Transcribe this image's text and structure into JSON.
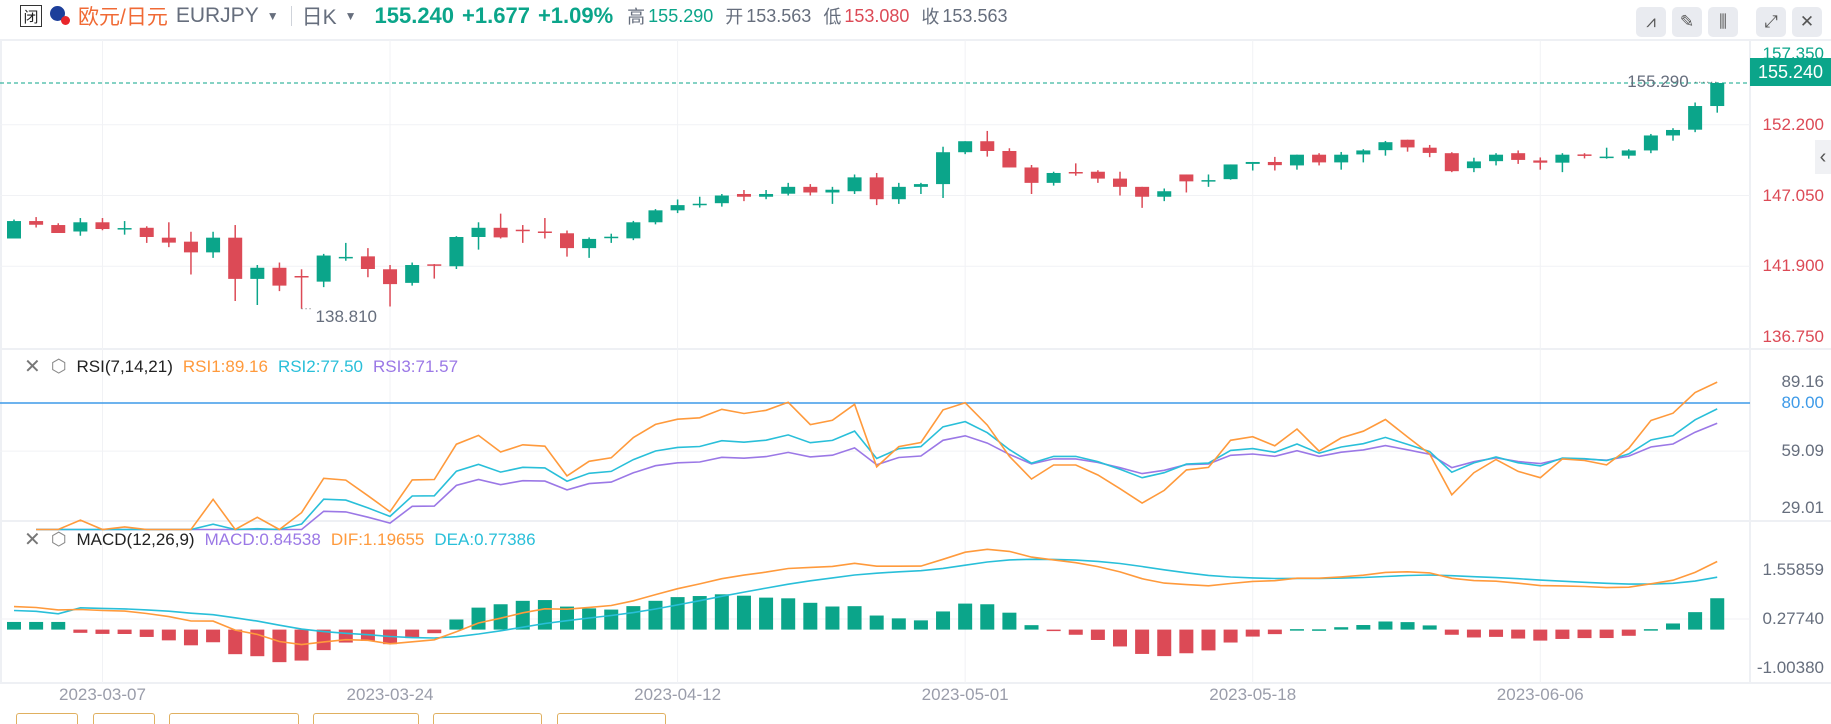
{
  "header": {
    "closed_badge": "闭",
    "name": "欧元/日元",
    "symbol": "EURJPY",
    "period": "日K",
    "price": "155.240",
    "change": "+1.677",
    "change_pct": "+1.09%",
    "high_label": "高",
    "high": "155.290",
    "open_label": "开",
    "open": "153.563",
    "low_label": "低",
    "low": "153.080",
    "close_label": "收",
    "close": "153.563"
  },
  "toolbar": [
    {
      "name": "indicator-line-icon",
      "glyph": "⩘"
    },
    {
      "name": "pencil-icon",
      "glyph": "✎"
    },
    {
      "name": "candlestick-icon",
      "glyph": "⫼"
    },
    {
      "name": "expand-icon",
      "glyph": "⤢"
    },
    {
      "name": "close-icon",
      "glyph": "✕"
    }
  ],
  "rsi_legend": {
    "title": "RSI(7,14,21)",
    "rsi1": "RSI1:89.16",
    "rsi2": "RSI2:77.50",
    "rsi3": "RSI3:71.57"
  },
  "macd_legend": {
    "title": "MACD(12,26,9)",
    "macd": "MACD:0.84538",
    "dif": "DIF:1.19655",
    "dea": "DEA:0.77386"
  },
  "colors": {
    "up": "#0ba58a",
    "down": "#dc4a56",
    "rsi1": "#ff9a3c",
    "rsi2": "#29bfd9",
    "rsi3": "#9b78e6",
    "dif": "#ff9a3c",
    "dea": "#29bfd9",
    "rsi_level": "#3d9ae8"
  },
  "chart_data": {
    "type": "candlestick",
    "title": "欧元/日元 EURJPY 日K",
    "current_price": 155.24,
    "current_price_label": "155.240",
    "high_marker": {
      "index": 77,
      "value": 155.29,
      "label": "155.290"
    },
    "low_marker": {
      "index": 13,
      "value": 138.81,
      "label": "138.810"
    },
    "price_axis": {
      "ylim": [
        136.75,
        157.35
      ],
      "ticks": [
        "157.350",
        "152.200",
        "147.050",
        "141.900",
        "136.750"
      ],
      "tick_values": [
        157.35,
        152.2,
        147.05,
        141.9,
        136.75
      ]
    },
    "x_ticks": [
      {
        "index": 4,
        "label": "2023-03-07"
      },
      {
        "index": 17,
        "label": "2023-03-24"
      },
      {
        "index": 30,
        "label": "2023-04-12"
      },
      {
        "index": 43,
        "label": "2023-05-01"
      },
      {
        "index": 56,
        "label": "2023-05-18"
      },
      {
        "index": 69,
        "label": "2023-06-06"
      }
    ],
    "ohlc_fields": [
      "open",
      "high",
      "low",
      "close"
    ],
    "candles": [
      [
        143.92,
        145.3,
        143.92,
        145.19
      ],
      [
        145.19,
        145.48,
        144.72,
        144.92
      ],
      [
        144.9,
        145.03,
        144.32,
        144.32
      ],
      [
        144.43,
        145.41,
        144.12,
        145.1
      ],
      [
        145.1,
        145.41,
        144.52,
        144.61
      ],
      [
        144.65,
        145.19,
        144.2,
        144.68
      ],
      [
        144.7,
        144.81,
        143.6,
        144.03
      ],
      [
        143.98,
        145.1,
        143.29,
        143.62
      ],
      [
        143.69,
        144.41,
        141.3,
        142.91
      ],
      [
        142.91,
        144.41,
        142.51,
        143.98
      ],
      [
        143.98,
        144.9,
        139.37,
        140.98
      ],
      [
        140.98,
        141.99,
        139.08,
        141.79
      ],
      [
        141.79,
        142.17,
        140.09,
        140.49
      ],
      [
        141.19,
        141.68,
        138.81,
        141.16
      ],
      [
        140.78,
        142.8,
        140.38,
        142.68
      ],
      [
        142.55,
        143.6,
        142.3,
        142.58
      ],
      [
        142.62,
        143.22,
        141.1,
        141.7
      ],
      [
        141.68,
        141.99,
        138.97,
        140.6
      ],
      [
        140.69,
        142.17,
        140.49,
        141.99
      ],
      [
        142.04,
        142.06,
        141.0,
        142.01
      ],
      [
        141.9,
        144.09,
        141.7,
        144.03
      ],
      [
        144.03,
        145.1,
        143.11,
        144.7
      ],
      [
        144.7,
        145.73,
        143.92,
        144.0
      ],
      [
        144.56,
        144.9,
        143.6,
        144.45
      ],
      [
        144.43,
        145.41,
        143.92,
        144.4
      ],
      [
        144.3,
        144.5,
        142.6,
        143.22
      ],
      [
        143.22,
        144.0,
        142.51,
        143.89
      ],
      [
        144.0,
        144.27,
        143.6,
        144.05
      ],
      [
        143.93,
        145.2,
        143.8,
        145.1
      ],
      [
        145.1,
        146.06,
        144.95,
        145.97
      ],
      [
        145.97,
        146.76,
        145.77,
        146.35
      ],
      [
        146.4,
        146.96,
        146.17,
        146.45
      ],
      [
        146.49,
        147.16,
        146.24,
        147.05
      ],
      [
        147.16,
        147.45,
        146.64,
        146.96
      ],
      [
        146.96,
        147.45,
        146.78,
        147.16
      ],
      [
        147.18,
        147.97,
        147.05,
        147.68
      ],
      [
        147.68,
        147.88,
        147.05,
        147.27
      ],
      [
        147.27,
        147.68,
        146.44,
        147.47
      ],
      [
        147.36,
        148.58,
        147.16,
        148.37
      ],
      [
        148.37,
        148.69,
        146.35,
        146.78
      ],
      [
        146.78,
        147.97,
        146.44,
        147.68
      ],
      [
        147.68,
        147.97,
        147.16,
        147.88
      ],
      [
        147.88,
        150.6,
        146.87,
        150.2
      ],
      [
        150.2,
        151.0,
        150.06,
        151.0
      ],
      [
        151.0,
        151.75,
        149.88,
        150.29
      ],
      [
        150.29,
        150.49,
        149.09,
        149.09
      ],
      [
        149.09,
        149.27,
        147.16,
        147.97
      ],
      [
        147.97,
        148.78,
        147.77,
        148.69
      ],
      [
        148.76,
        149.39,
        148.49,
        148.69
      ],
      [
        148.78,
        148.89,
        147.97,
        148.28
      ],
      [
        148.28,
        148.78,
        147.05,
        147.68
      ],
      [
        147.68,
        147.68,
        146.15,
        146.96
      ],
      [
        146.96,
        147.56,
        146.64,
        147.36
      ],
      [
        148.58,
        148.58,
        147.27,
        148.08
      ],
      [
        148.1,
        148.58,
        147.68,
        148.17
      ],
      [
        148.24,
        149.31,
        148.2,
        149.31
      ],
      [
        149.35,
        149.49,
        148.87,
        149.49
      ],
      [
        149.49,
        149.86,
        148.87,
        149.26
      ],
      [
        149.24,
        150.02,
        148.93,
        150.02
      ],
      [
        150.02,
        150.13,
        149.24,
        149.46
      ],
      [
        149.46,
        150.22,
        148.93,
        150.02
      ],
      [
        150.04,
        150.42,
        149.46,
        150.33
      ],
      [
        150.35,
        151.02,
        149.95,
        150.93
      ],
      [
        151.11,
        151.11,
        150.24,
        150.55
      ],
      [
        150.53,
        150.73,
        149.84,
        150.15
      ],
      [
        150.13,
        150.2,
        148.75,
        148.82
      ],
      [
        149.04,
        149.8,
        148.75,
        149.53
      ],
      [
        149.55,
        150.13,
        149.24,
        150.02
      ],
      [
        150.13,
        150.33,
        149.35,
        149.64
      ],
      [
        149.6,
        149.82,
        148.93,
        149.44
      ],
      [
        149.44,
        150.13,
        148.75,
        150.02
      ],
      [
        150.04,
        150.13,
        149.75,
        149.98
      ],
      [
        149.84,
        150.53,
        149.73,
        149.88
      ],
      [
        149.95,
        150.42,
        149.73,
        150.33
      ],
      [
        150.33,
        151.53,
        150.13,
        151.42
      ],
      [
        151.42,
        151.95,
        151.04,
        151.82
      ],
      [
        151.84,
        153.82,
        151.66,
        153.563
      ],
      [
        153.563,
        155.29,
        153.08,
        155.24
      ]
    ],
    "rsi": {
      "periods": [
        7,
        14,
        21
      ],
      "level": 80,
      "ticks": [
        "89.16",
        "80.00",
        "59.09",
        "29.01"
      ],
      "tick_values": [
        89.16,
        80,
        59.09,
        29.01
      ]
    },
    "macd": {
      "fast": 12,
      "slow": 26,
      "signal": 9,
      "ticks": [
        "1.55859",
        "0.27740",
        "-1.00380"
      ],
      "tick_values": [
        1.55859,
        0.2774,
        -1.0038
      ]
    }
  }
}
